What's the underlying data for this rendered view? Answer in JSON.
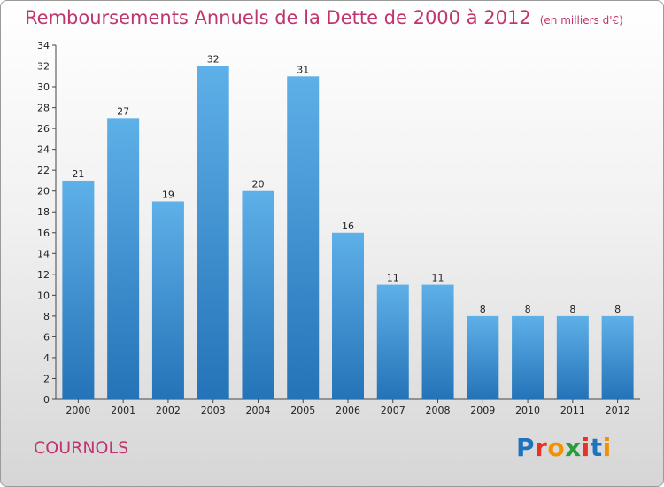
{
  "title": "Remboursements Annuels de la Dette de 2000 à 2012",
  "subtitle": "(en milliers d'€)",
  "commune": "COURNOLS",
  "logo": {
    "text": "Proxiti",
    "colors": [
      "#1e73be",
      "#e5332a",
      "#f39200",
      "#2a9d3a",
      "#e5332a",
      "#1e73be",
      "#f39200"
    ]
  },
  "colors": {
    "title": "#c0356e",
    "bar_light": "#5eb0e8",
    "bar_dark": "#2473b8"
  },
  "chart_data": {
    "type": "bar",
    "categories": [
      "2000",
      "2001",
      "2002",
      "2003",
      "2004",
      "2005",
      "2006",
      "2007",
      "2008",
      "2009",
      "2010",
      "2011",
      "2012"
    ],
    "values": [
      21,
      27,
      19,
      32,
      20,
      31,
      16,
      11,
      11,
      8,
      8,
      8,
      8
    ],
    "ylim": [
      0,
      34
    ],
    "yticks": [
      0,
      2,
      4,
      6,
      8,
      10,
      12,
      14,
      16,
      18,
      20,
      22,
      24,
      26,
      28,
      30,
      32,
      34
    ],
    "grid": false,
    "legend": "none"
  }
}
